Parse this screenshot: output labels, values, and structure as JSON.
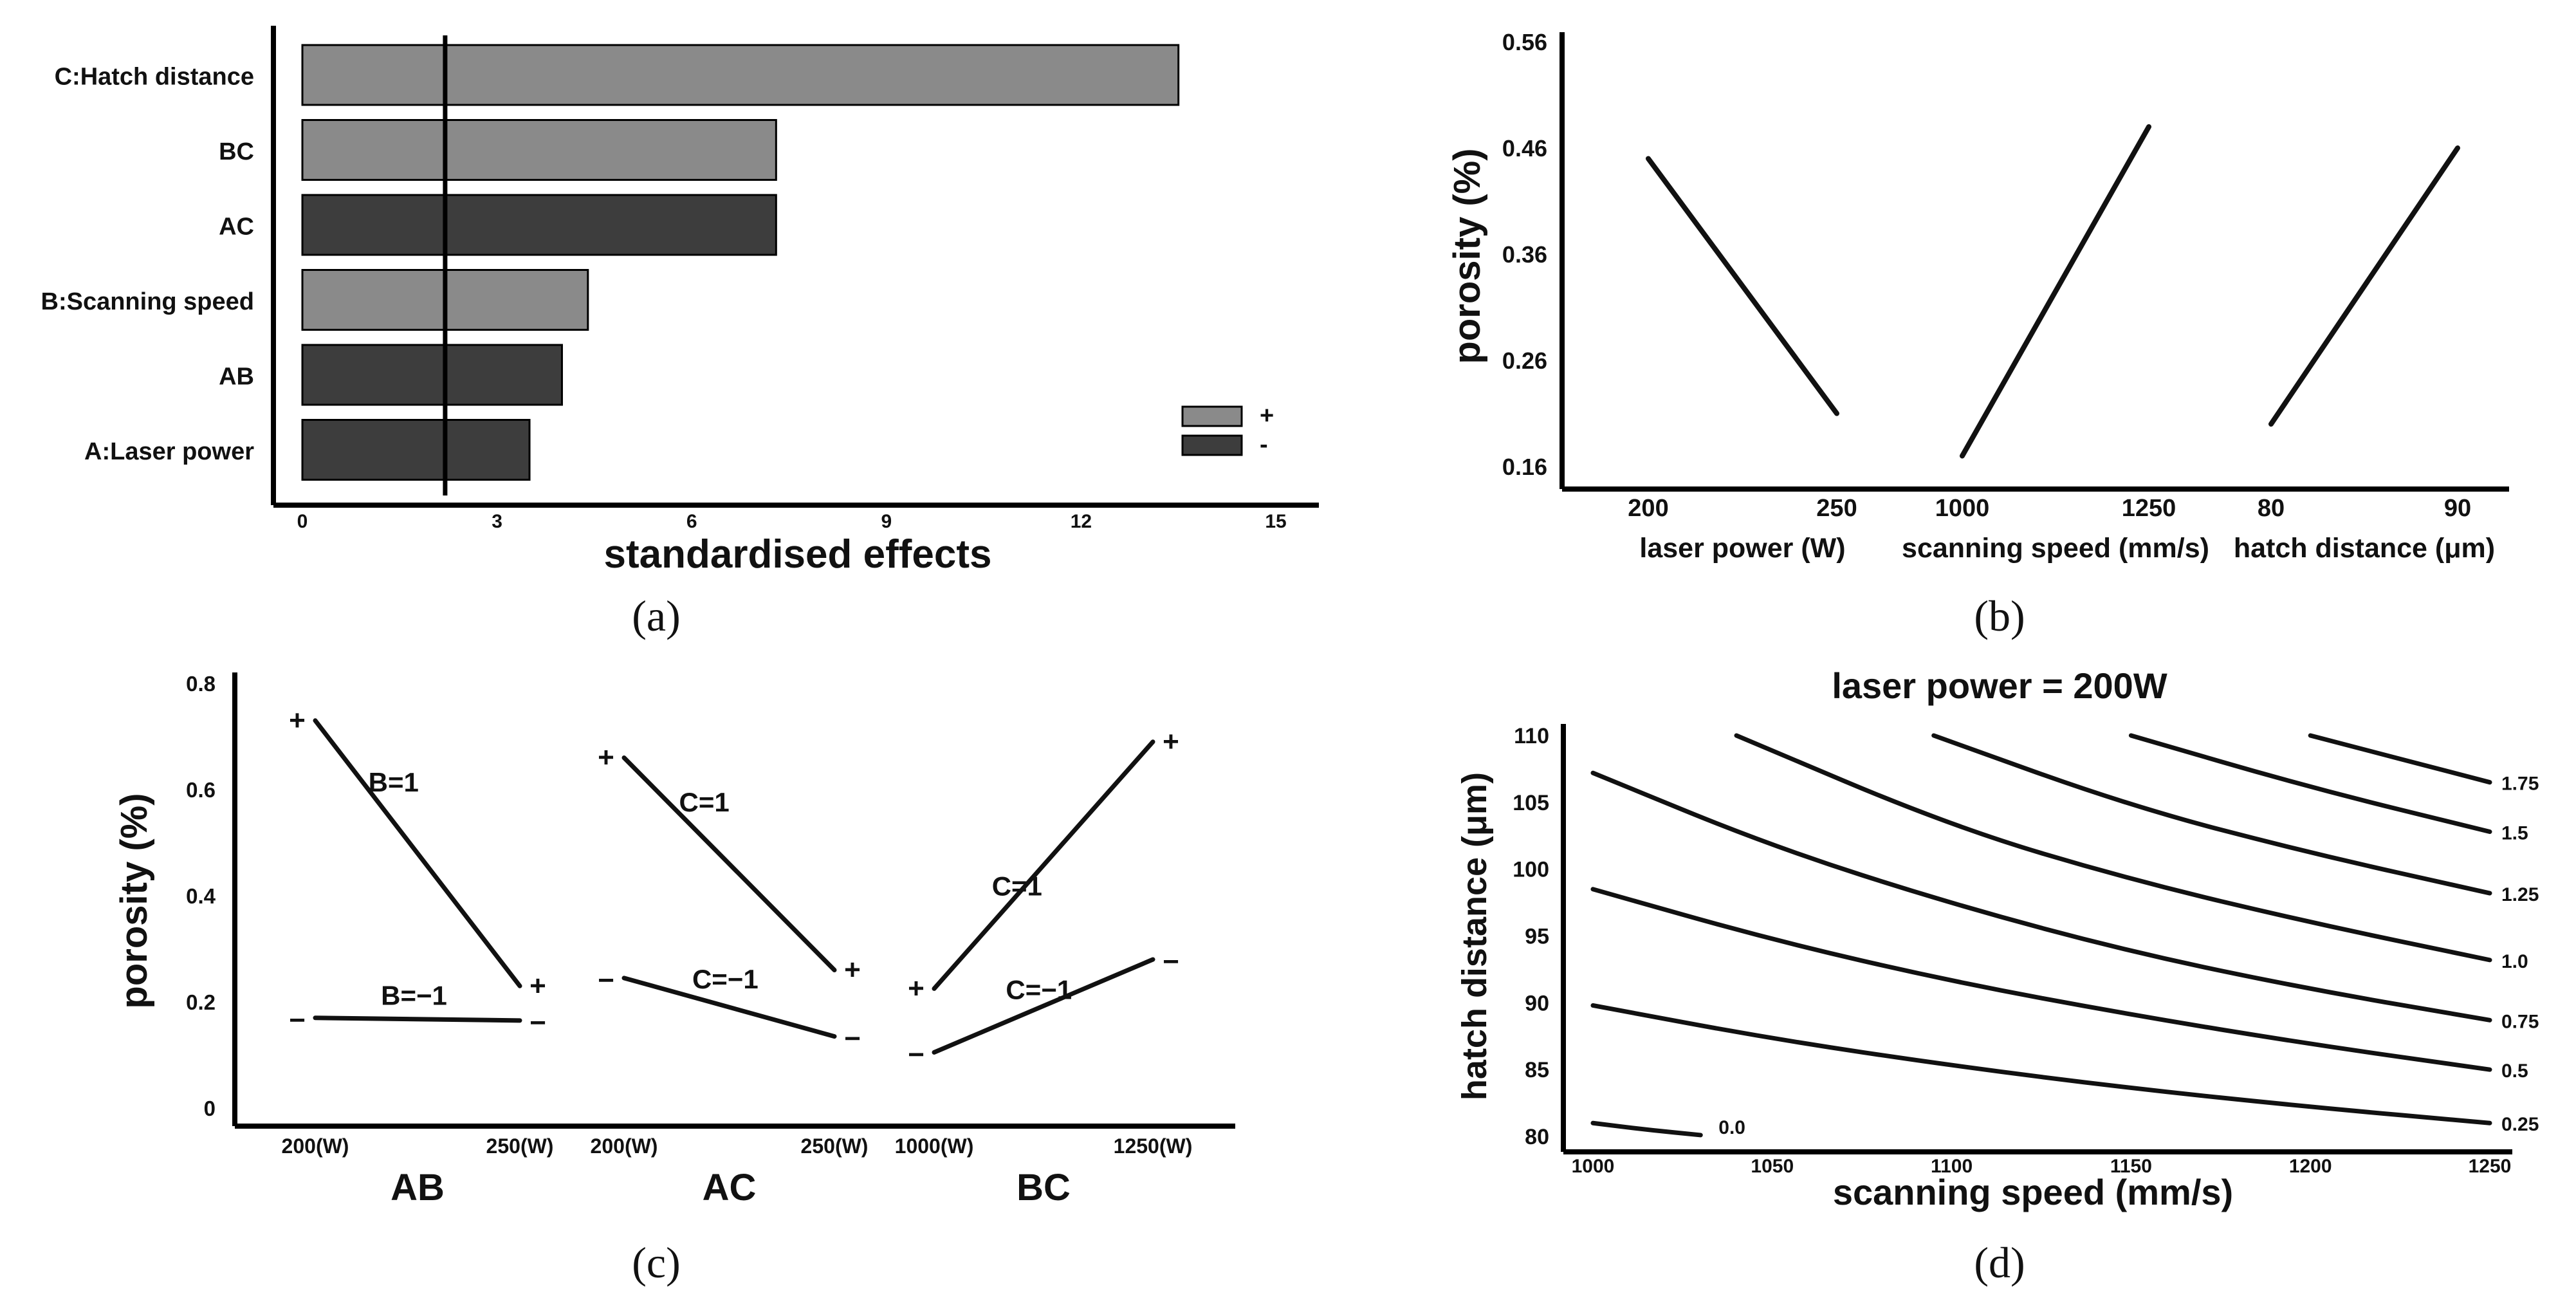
{
  "colors": {
    "bar_positive": "#8a8a8a",
    "bar_negative": "#3d3d3d",
    "line": "#111111"
  },
  "chart_data": [
    {
      "panel_label": "(a)",
      "type": "bar",
      "orientation": "horizontal",
      "xlabel": "standardised effects",
      "xticks": [
        "0",
        "3",
        "6",
        "9",
        "12",
        "15"
      ],
      "xlim": [
        0,
        15
      ],
      "reference_line": 2.2,
      "legend": {
        "position": "bottom-right",
        "entries": [
          {
            "label": "+",
            "sign": "positive"
          },
          {
            "label": "-",
            "sign": "negative"
          }
        ]
      },
      "bars": [
        {
          "label": "C:Hatch distance",
          "value": 13.5,
          "sign": "positive"
        },
        {
          "label": "BC",
          "value": 7.3,
          "sign": "positive"
        },
        {
          "label": "AC",
          "value": 7.3,
          "sign": "negative"
        },
        {
          "label": "B:Scanning speed",
          "value": 4.4,
          "sign": "positive"
        },
        {
          "label": "AB",
          "value": 4.0,
          "sign": "negative"
        },
        {
          "label": "A:Laser power",
          "value": 3.5,
          "sign": "negative"
        }
      ]
    },
    {
      "panel_label": "(b)",
      "type": "line",
      "ylabel": "porosity (%)",
      "ylim": [
        0.16,
        0.56
      ],
      "yticks": [
        "0.16",
        "0.26",
        "0.36",
        "0.46",
        "0.56"
      ],
      "panels": [
        {
          "xlabel": "laser power (W)",
          "x": [
            "200",
            "250"
          ],
          "y": [
            0.45,
            0.21
          ]
        },
        {
          "xlabel": "scanning speed (mm/s)",
          "x": [
            "1000",
            "1250"
          ],
          "y": [
            0.17,
            0.48
          ]
        },
        {
          "xlabel": "hatch distance (μm)",
          "x": [
            "80",
            "90"
          ],
          "y": [
            0.2,
            0.46
          ]
        }
      ]
    },
    {
      "panel_label": "(c)",
      "type": "line",
      "ylabel": "porosity (%)",
      "ylim": [
        0,
        0.8
      ],
      "yticks": [
        "0",
        "0.2",
        "0.4",
        "0.6",
        "0.8"
      ],
      "groups": [
        {
          "name": "AB",
          "x": [
            "200(W)",
            "250(W)"
          ],
          "series": [
            {
              "name": "B=1",
              "values": [
                0.73,
                0.23
              ],
              "markers": [
                "+",
                "+"
              ]
            },
            {
              "name": "B=−1",
              "values": [
                0.17,
                0.165
              ],
              "markers": [
                "−",
                "−"
              ]
            }
          ]
        },
        {
          "name": "AC",
          "x": [
            "200(W)",
            "250(W)"
          ],
          "series": [
            {
              "name": "C=1",
              "values": [
                0.66,
                0.26
              ],
              "markers": [
                "+",
                "+"
              ]
            },
            {
              "name": "C=−1",
              "values": [
                0.245,
                0.135
              ],
              "markers": [
                "−",
                "−"
              ]
            }
          ]
        },
        {
          "name": "BC",
          "x": [
            "1000(W)",
            "1250(W)"
          ],
          "series": [
            {
              "name": "C=1",
              "values": [
                0.225,
                0.69
              ],
              "markers": [
                "+",
                "+"
              ]
            },
            {
              "name": "C=−1",
              "values": [
                0.105,
                0.28
              ],
              "markers": [
                "−",
                "−"
              ]
            }
          ]
        }
      ]
    },
    {
      "panel_label": "(d)",
      "type": "contour",
      "title": "laser power = 200W",
      "xlabel": "scanning speed (mm/s)",
      "ylabel": "hatch distance (μm)",
      "xlim": [
        995,
        1255
      ],
      "ylim": [
        79,
        111
      ],
      "xticks": [
        "1000",
        "1050",
        "1100",
        "1150",
        "1200",
        "1250"
      ],
      "yticks": [
        "80",
        "85",
        "90",
        "95",
        "100",
        "105",
        "110"
      ],
      "contours": [
        {
          "level": "0.0",
          "points": [
            [
              1000,
              81.0
            ],
            [
              1015,
              80.5
            ],
            [
              1030,
              80.1
            ]
          ]
        },
        {
          "level": "0.25",
          "points": [
            [
              1000,
              89.8
            ],
            [
              1050,
              87.3
            ],
            [
              1100,
              85.3
            ],
            [
              1150,
              83.6
            ],
            [
              1200,
              82.2
            ],
            [
              1250,
              81.0
            ]
          ]
        },
        {
          "level": "0.5",
          "points": [
            [
              1000,
              98.5
            ],
            [
              1050,
              94.7
            ],
            [
              1100,
              91.6
            ],
            [
              1150,
              89.1
            ],
            [
              1200,
              86.9
            ],
            [
              1250,
              85.0
            ]
          ]
        },
        {
          "level": "0.75",
          "points": [
            [
              1000,
              107.2
            ],
            [
              1050,
              101.7
            ],
            [
              1100,
              97.4
            ],
            [
              1150,
              93.8
            ],
            [
              1200,
              91.0
            ],
            [
              1250,
              88.7
            ]
          ]
        },
        {
          "level": "1.0",
          "points": [
            [
              1040,
              110.0
            ],
            [
              1100,
              103.2
            ],
            [
              1150,
              99.2
            ],
            [
              1200,
              96.0
            ],
            [
              1250,
              93.2
            ]
          ]
        },
        {
          "level": "1.25",
          "points": [
            [
              1095,
              110.0
            ],
            [
              1150,
              104.7
            ],
            [
              1200,
              101.2
            ],
            [
              1250,
              98.2
            ]
          ]
        },
        {
          "level": "1.5",
          "points": [
            [
              1150,
              110.0
            ],
            [
              1200,
              106.1
            ],
            [
              1250,
              102.8
            ]
          ]
        },
        {
          "level": "1.75",
          "points": [
            [
              1200,
              110.0
            ],
            [
              1250,
              106.5
            ]
          ]
        }
      ]
    }
  ]
}
